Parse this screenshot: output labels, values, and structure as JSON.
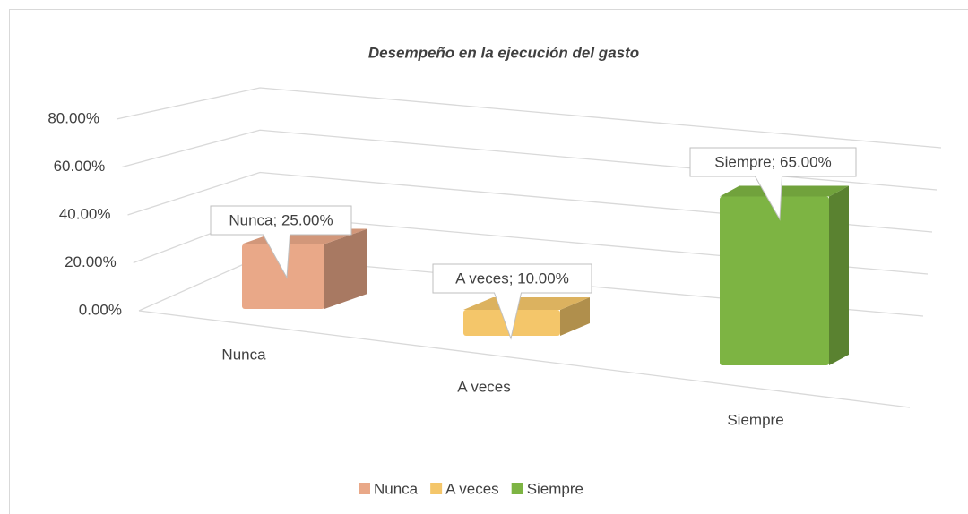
{
  "chart_data": {
    "type": "bar3d",
    "title": "Desempeño en la ejecución del gasto",
    "categories": [
      "Nunca",
      "A veces",
      "Siempre"
    ],
    "values": [
      25,
      10,
      65
    ],
    "value_labels": [
      "Nunca; 25.00%",
      "A veces; 10.00%",
      "Siempre; 65.00%"
    ],
    "colors": [
      "#e9a888",
      "#f4c66a",
      "#7db443"
    ],
    "ylim": [
      0,
      80
    ],
    "yticks": [
      {
        "value": 0,
        "label": "0.00%"
      },
      {
        "value": 20,
        "label": "20.00%"
      },
      {
        "value": 40,
        "label": "40.00%"
      },
      {
        "value": 60,
        "label": "60.00%"
      },
      {
        "value": 80,
        "label": "80.00%"
      }
    ],
    "grid": true,
    "legend": "bottom"
  }
}
